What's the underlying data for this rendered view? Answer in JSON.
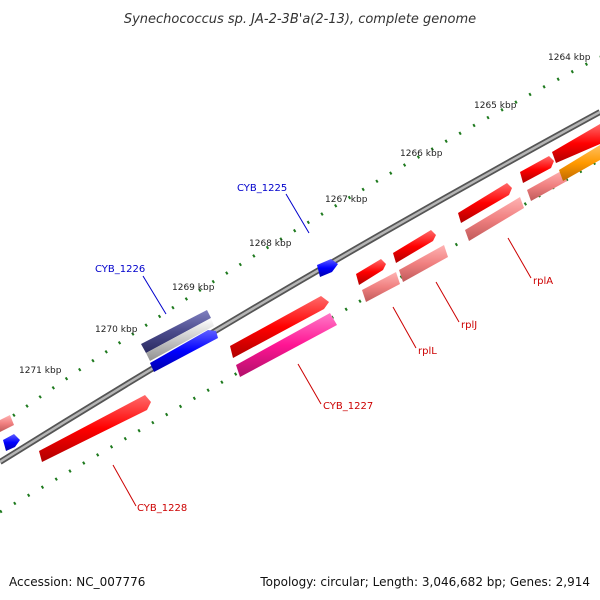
{
  "title": "Synechococcus sp. JA-2-3B'a(2-13), complete genome",
  "footer": {
    "accession": "Accession: NC_007776",
    "summary": "Topology: circular; Length: 3,046,682 bp; Genes: 2,914"
  },
  "colors": {
    "backbone": "#808080",
    "forward_cds": "#ff0000",
    "forward_cds_light": "#f08080",
    "reverse_cds": "#0000ff",
    "reverse_cds_dark": "#4b4b8c",
    "highlight_cds": "#ff1493",
    "orange_cds": "#ff9900",
    "tick": "#1e7a1e",
    "label_forward": "#cc0000",
    "label_reverse": "#0000cc"
  },
  "ruler": {
    "ticks": [
      {
        "label": "1264 kbp"
      },
      {
        "label": "1265 kbp"
      },
      {
        "label": "1266 kbp"
      },
      {
        "label": "1267 kbp"
      },
      {
        "label": "1268 kbp"
      },
      {
        "label": "1269 kbp"
      },
      {
        "label": "1270 kbp"
      },
      {
        "label": "1271 kbp"
      }
    ]
  },
  "gene_labels": [
    {
      "name": "CYB_1225",
      "strand": "reverse"
    },
    {
      "name": "CYB_1226",
      "strand": "reverse"
    },
    {
      "name": "CYB_1227",
      "strand": "forward"
    },
    {
      "name": "CYB_1228",
      "strand": "forward"
    },
    {
      "name": "rplL",
      "strand": "forward"
    },
    {
      "name": "rplJ",
      "strand": "forward"
    },
    {
      "name": "rplA",
      "strand": "forward"
    }
  ]
}
